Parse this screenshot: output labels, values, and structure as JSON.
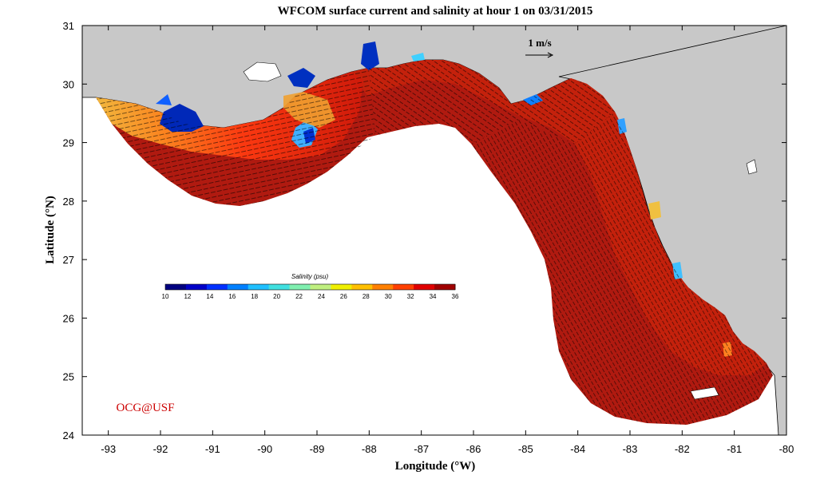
{
  "title": "WFCOM surface current and salinity at hour 1 on 03/31/2015",
  "xlabel": "Longitude (°W)",
  "ylabel": "Latitude (°N)",
  "credit": "OCG@USF",
  "vector_scale_label": "1 m/s",
  "colorbar": {
    "title": "Salinity (psu)",
    "ticks": [
      "10",
      "12",
      "14",
      "16",
      "18",
      "20",
      "22",
      "24",
      "26",
      "28",
      "30",
      "32",
      "34",
      "36"
    ],
    "min": 10,
    "max": 36,
    "colors": [
      "#000080",
      "#0000c8",
      "#0030ff",
      "#0080ff",
      "#20c0ff",
      "#40e0e0",
      "#80f0b0",
      "#c0f080",
      "#f0f000",
      "#ffc000",
      "#ff8000",
      "#ff4000",
      "#e00000",
      "#a00000"
    ]
  },
  "x_ticks": [
    "-93",
    "-92",
    "-91",
    "-90",
    "-89",
    "-88",
    "-87",
    "-86",
    "-85",
    "-84",
    "-83",
    "-82",
    "-81",
    "-80"
  ],
  "y_ticks": [
    "31",
    "30",
    "29",
    "28",
    "27",
    "26",
    "25",
    "24"
  ],
  "map_extent": {
    "lon_min": -93.5,
    "lon_max": -80,
    "lat_min": 24,
    "lat_max": 31
  },
  "colors": {
    "land": "#c8c8c8",
    "ocean_deep": "#a01010",
    "ocean_mid": "#c81a0a",
    "brackish": "#ff7a10",
    "fresh": "#0020b0",
    "credit": "#cc0000"
  }
}
